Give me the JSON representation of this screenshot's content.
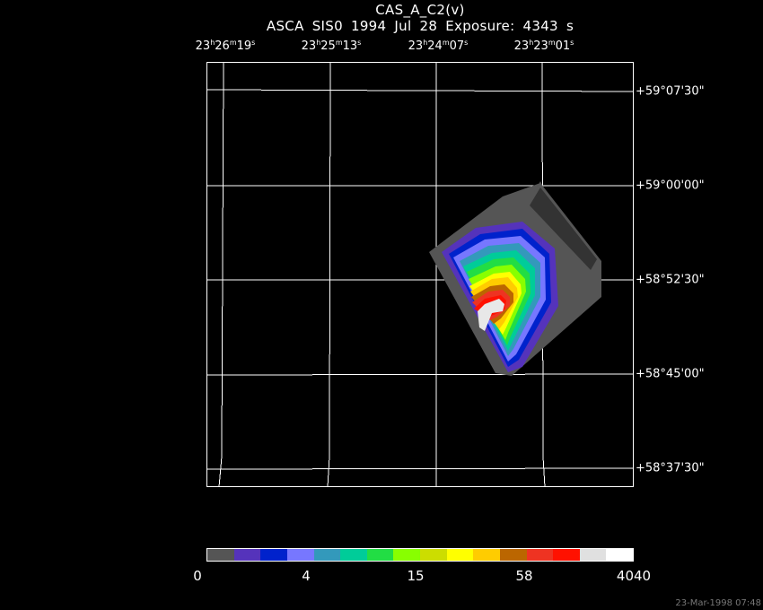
{
  "title": "CAS_A_C2(v)",
  "subtitle": "ASCA SIS0   1994 Jul 28    Exposure:  4343 s",
  "ra_labels": [
    {
      "h": "23",
      "m": "26",
      "s": "19"
    },
    {
      "h": "23",
      "m": "25",
      "s": "13"
    },
    {
      "h": "23",
      "m": "24",
      "s": "07"
    },
    {
      "h": "23",
      "m": "23",
      "s": "01"
    }
  ],
  "dec_labels": [
    "+59°07'30\"",
    "+59°00'00\"",
    "+58°52'30\"",
    "+58°45'00\"",
    "+58°37'30\""
  ],
  "colorbar": {
    "colors": [
      "#555555",
      "#5533bb",
      "#0022cc",
      "#7777ff",
      "#3399bb",
      "#00cc99",
      "#22dd44",
      "#88ff00",
      "#ccdd00",
      "#ffff00",
      "#ffcc00",
      "#bb6600",
      "#ee3322",
      "#ff1100",
      "#e0e0e0",
      "#ffffff"
    ],
    "labels": [
      "0",
      "4",
      "15",
      "58",
      "4040"
    ]
  },
  "timestamp": "23-Mar-1998 07:48"
}
